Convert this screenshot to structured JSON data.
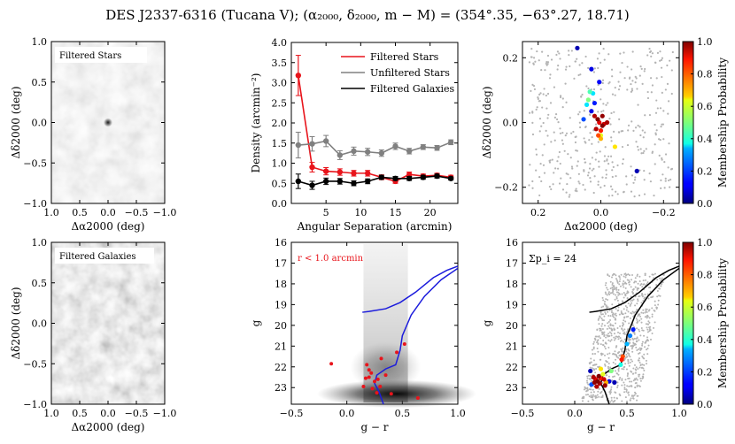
{
  "figure_title": "DES J2337-6316 (Tucana V); (α₂₀₀₀, δ₂₀₀₀, m − M) = (354°.35, −63°.27, 18.71)",
  "colors": {
    "red": "#e8141b",
    "gray": "#808080",
    "black": "#000000",
    "blue": "#1c1cdc",
    "field": "#b4b4b4"
  },
  "chart_data": [
    {
      "id": "filtered-stars-map",
      "type": "heatmap",
      "label": "Filtered Stars",
      "xlabel": "Δα2000 (deg)",
      "ylabel": "Δδ2000 (deg)",
      "xlim": [
        1.0,
        -1.0
      ],
      "ylim": [
        -1.0,
        1.0
      ],
      "xticks": [
        "1.0",
        "0.5",
        "0.0",
        "−0.5",
        "−1.0"
      ],
      "yticks": [
        "1.0",
        "0.5",
        "0.0",
        "−0.5",
        "−1.0"
      ],
      "feature": {
        "x": 0.0,
        "y": 0.0
      }
    },
    {
      "id": "radial-density",
      "type": "line",
      "xlabel": "Angular Separation (arcmin)",
      "ylabel": "Density (arcmin⁻²)",
      "xlim": [
        0,
        24
      ],
      "ylim": [
        0,
        4.0
      ],
      "xticks": [
        "5",
        "10",
        "15",
        "20"
      ],
      "xtick_values": [
        5,
        10,
        15,
        20
      ],
      "yticks": [
        "0.0",
        "0.5",
        "1.0",
        "1.5",
        "2.0",
        "2.5",
        "3.0",
        "3.5",
        "4.0"
      ],
      "ytick_values": [
        0,
        0.5,
        1,
        1.5,
        2,
        2.5,
        3,
        3.5,
        4
      ],
      "series": [
        {
          "name": "Filtered Stars",
          "color": "red",
          "x": [
            1,
            3,
            5,
            7,
            9,
            11,
            13,
            15,
            17,
            19,
            21,
            23
          ],
          "y": [
            3.18,
            0.9,
            0.8,
            0.78,
            0.75,
            0.75,
            0.65,
            0.55,
            0.72,
            0.68,
            0.7,
            0.65
          ],
          "err": [
            0.5,
            0.12,
            0.09,
            0.08,
            0.07,
            0.07,
            0.06,
            0.05,
            0.06,
            0.05,
            0.05,
            0.05
          ]
        },
        {
          "name": "Unfiltered Stars",
          "color": "gray",
          "x": [
            1,
            3,
            5,
            7,
            9,
            11,
            13,
            15,
            17,
            19,
            21,
            23
          ],
          "y": [
            1.45,
            1.48,
            1.55,
            1.2,
            1.3,
            1.28,
            1.25,
            1.42,
            1.3,
            1.4,
            1.38,
            1.52
          ],
          "err": [
            0.32,
            0.18,
            0.14,
            0.11,
            0.1,
            0.09,
            0.08,
            0.08,
            0.07,
            0.06,
            0.06,
            0.06
          ]
        },
        {
          "name": "Filtered Galaxies",
          "color": "black",
          "x": [
            1,
            3,
            5,
            7,
            9,
            11,
            13,
            15,
            17,
            19,
            21,
            23
          ],
          "y": [
            0.55,
            0.45,
            0.55,
            0.55,
            0.5,
            0.55,
            0.65,
            0.62,
            0.62,
            0.65,
            0.68,
            0.62
          ],
          "err": [
            0.18,
            0.1,
            0.08,
            0.07,
            0.06,
            0.06,
            0.05,
            0.05,
            0.05,
            0.05,
            0.05,
            0.04
          ]
        }
      ]
    },
    {
      "id": "member-map",
      "type": "scatter",
      "xlabel": "Δα2000 (deg)",
      "ylabel": "Δδ2000 (deg)",
      "xlim": [
        0.25,
        -0.25
      ],
      "ylim": [
        -0.25,
        0.25
      ],
      "xticks": [
        "0.2",
        "0.0",
        "−0.2"
      ],
      "xtick_values": [
        0.2,
        0,
        -0.2
      ],
      "yticks": [
        "0.2",
        "0.0",
        "−0.2"
      ],
      "ytick_values": [
        0.2,
        0,
        -0.2
      ],
      "colorbar_label": "Membership Probability",
      "members": [
        {
          "x": 0.075,
          "y": 0.23,
          "p": 0.05
        },
        {
          "x": 0.03,
          "y": 0.165,
          "p": 0.1
        },
        {
          "x": 0.005,
          "y": 0.125,
          "p": 0.12
        },
        {
          "x": 0.035,
          "y": 0.095,
          "p": 0.45
        },
        {
          "x": 0.025,
          "y": 0.09,
          "p": 0.35
        },
        {
          "x": 0.04,
          "y": 0.07,
          "p": 0.5
        },
        {
          "x": 0.045,
          "y": 0.055,
          "p": 0.35
        },
        {
          "x": 0.02,
          "y": 0.06,
          "p": 0.15
        },
        {
          "x": 0.055,
          "y": 0.01,
          "p": 0.2
        },
        {
          "x": 0.03,
          "y": 0.035,
          "p": 0.1
        },
        {
          "x": 0.02,
          "y": 0.02,
          "p": 0.95
        },
        {
          "x": 0.01,
          "y": 0.01,
          "p": 1.0
        },
        {
          "x": 0.005,
          "y": 0.0,
          "p": 0.9
        },
        {
          "x": -0.005,
          "y": -0.01,
          "p": 1.0
        },
        {
          "x": 0.015,
          "y": -0.02,
          "p": 0.95
        },
        {
          "x": 0.0,
          "y": -0.025,
          "p": 0.85
        },
        {
          "x": -0.01,
          "y": -0.005,
          "p": 0.92
        },
        {
          "x": 0.008,
          "y": -0.04,
          "p": 0.8
        },
        {
          "x": 0.0,
          "y": -0.05,
          "p": 0.7
        },
        {
          "x": -0.045,
          "y": -0.075,
          "p": 0.65
        },
        {
          "x": -0.005,
          "y": 0.02,
          "p": 0.98
        },
        {
          "x": -0.02,
          "y": 0.0,
          "p": 0.96
        },
        {
          "x": -0.115,
          "y": -0.15,
          "p": 0.05
        },
        {
          "x": 0.0,
          "y": -0.04,
          "p": 0.6
        }
      ]
    },
    {
      "id": "filtered-galaxies-map",
      "type": "heatmap",
      "label": "Filtered Galaxies",
      "xlabel": "Δα2000 (deg)",
      "ylabel": "Δδ2000 (deg)",
      "xlim": [
        1.0,
        -1.0
      ],
      "ylim": [
        -1.0,
        1.0
      ],
      "xticks": [
        "1.0",
        "0.5",
        "0.0",
        "−0.5",
        "−1.0"
      ],
      "yticks": [
        "1.0",
        "0.5",
        "0.0",
        "−0.5",
        "−1.0"
      ]
    },
    {
      "id": "cmd-inner",
      "type": "scatter",
      "annotation": "r < 1.0 arcmin",
      "xlabel": "g − r",
      "ylabel": "g",
      "xlim": [
        -0.5,
        1.0
      ],
      "ylim": [
        23.8,
        16.0
      ],
      "xticks": [
        "−0.5",
        "0.0",
        "0.5",
        "1.0"
      ],
      "xtick_values": [
        -0.5,
        0,
        0.5,
        1
      ],
      "yticks": [
        "16",
        "17",
        "18",
        "19",
        "20",
        "21",
        "22",
        "23"
      ],
      "ytick_values": [
        16,
        17,
        18,
        19,
        20,
        21,
        22,
        23
      ],
      "isochrone_rgb": [
        [
          0.33,
          23.8
        ],
        [
          0.29,
          23.2
        ],
        [
          0.25,
          22.8
        ],
        [
          0.27,
          22.4
        ],
        [
          0.35,
          22.1
        ],
        [
          0.44,
          21.9
        ],
        [
          0.48,
          21.2
        ],
        [
          0.5,
          20.5
        ],
        [
          0.58,
          19.5
        ],
        [
          0.7,
          18.6
        ],
        [
          0.85,
          17.8
        ],
        [
          1.0,
          17.25
        ]
      ],
      "isochrone_hb": [
        [
          0.14,
          19.37
        ],
        [
          0.2,
          19.33
        ],
        [
          0.35,
          19.2
        ],
        [
          0.48,
          18.9
        ],
        [
          0.62,
          18.4
        ],
        [
          0.78,
          17.7
        ],
        [
          0.9,
          17.35
        ],
        [
          1.0,
          17.15
        ]
      ],
      "stars": [
        [
          -0.14,
          21.85
        ],
        [
          0.18,
          21.9
        ],
        [
          0.2,
          22.5
        ],
        [
          0.17,
          22.55
        ],
        [
          0.22,
          22.3
        ],
        [
          0.25,
          22.7
        ],
        [
          0.15,
          22.95
        ],
        [
          0.3,
          22.95
        ],
        [
          0.23,
          23.05
        ],
        [
          0.28,
          22.6
        ],
        [
          0.35,
          22.4
        ],
        [
          0.2,
          22.15
        ],
        [
          0.4,
          23.3
        ],
        [
          0.45,
          21.3
        ],
        [
          0.52,
          20.9
        ],
        [
          0.64,
          23.5
        ],
        [
          0.27,
          23.25
        ],
        [
          0.31,
          21.6
        ]
      ]
    },
    {
      "id": "cmd-members",
      "type": "scatter",
      "annotation": "Σp_i = 24",
      "xlabel": "g − r",
      "ylabel": "g",
      "xlim": [
        -0.5,
        1.0
      ],
      "ylim": [
        23.8,
        16.0
      ],
      "xticks": [
        "−0.5",
        "0.0",
        "0.5",
        "1.0"
      ],
      "xtick_values": [
        -0.5,
        0,
        0.5,
        1
      ],
      "yticks": [
        "16",
        "17",
        "18",
        "19",
        "20",
        "21",
        "22",
        "23"
      ],
      "ytick_values": [
        16,
        17,
        18,
        19,
        20,
        21,
        22,
        23
      ],
      "colorbar_label": "Membership Probability",
      "members": [
        {
          "x": 0.15,
          "y": 22.2,
          "p": 0.05
        },
        {
          "x": 0.18,
          "y": 22.5,
          "p": 0.95
        },
        {
          "x": 0.2,
          "y": 22.6,
          "p": 0.9
        },
        {
          "x": 0.22,
          "y": 22.7,
          "p": 1.0
        },
        {
          "x": 0.25,
          "y": 22.55,
          "p": 0.85
        },
        {
          "x": 0.28,
          "y": 22.6,
          "p": 0.92
        },
        {
          "x": 0.3,
          "y": 22.75,
          "p": 0.7
        },
        {
          "x": 0.24,
          "y": 22.8,
          "p": 0.96
        },
        {
          "x": 0.19,
          "y": 22.75,
          "p": 0.98
        },
        {
          "x": 0.33,
          "y": 22.7,
          "p": 0.1
        },
        {
          "x": 0.38,
          "y": 22.75,
          "p": 0.05
        },
        {
          "x": 0.27,
          "y": 22.35,
          "p": 0.6
        },
        {
          "x": 0.35,
          "y": 22.2,
          "p": 0.5
        },
        {
          "x": 0.25,
          "y": 22.1,
          "p": 0.65
        },
        {
          "x": 0.44,
          "y": 21.9,
          "p": 0.4
        },
        {
          "x": 0.46,
          "y": 21.5,
          "p": 0.8
        },
        {
          "x": 0.5,
          "y": 20.9,
          "p": 0.3
        },
        {
          "x": 0.53,
          "y": 20.5,
          "p": 0.25
        },
        {
          "x": 0.45,
          "y": 21.65,
          "p": 0.85
        },
        {
          "x": 0.56,
          "y": 20.2,
          "p": 0.15
        },
        {
          "x": 0.21,
          "y": 22.95,
          "p": 0.95
        },
        {
          "x": 0.16,
          "y": 22.85,
          "p": 0.2
        },
        {
          "x": 0.29,
          "y": 22.9,
          "p": 0.98
        },
        {
          "x": 0.23,
          "y": 22.45,
          "p": 1.0
        }
      ]
    }
  ],
  "legend": {
    "filtered_stars": "Filtered Stars",
    "unfiltered_stars": "Unfiltered Stars",
    "filtered_galaxies": "Filtered Galaxies"
  },
  "colorbar_ticks": [
    "0.0",
    "0.2",
    "0.4",
    "0.6",
    "0.8",
    "1.0"
  ]
}
